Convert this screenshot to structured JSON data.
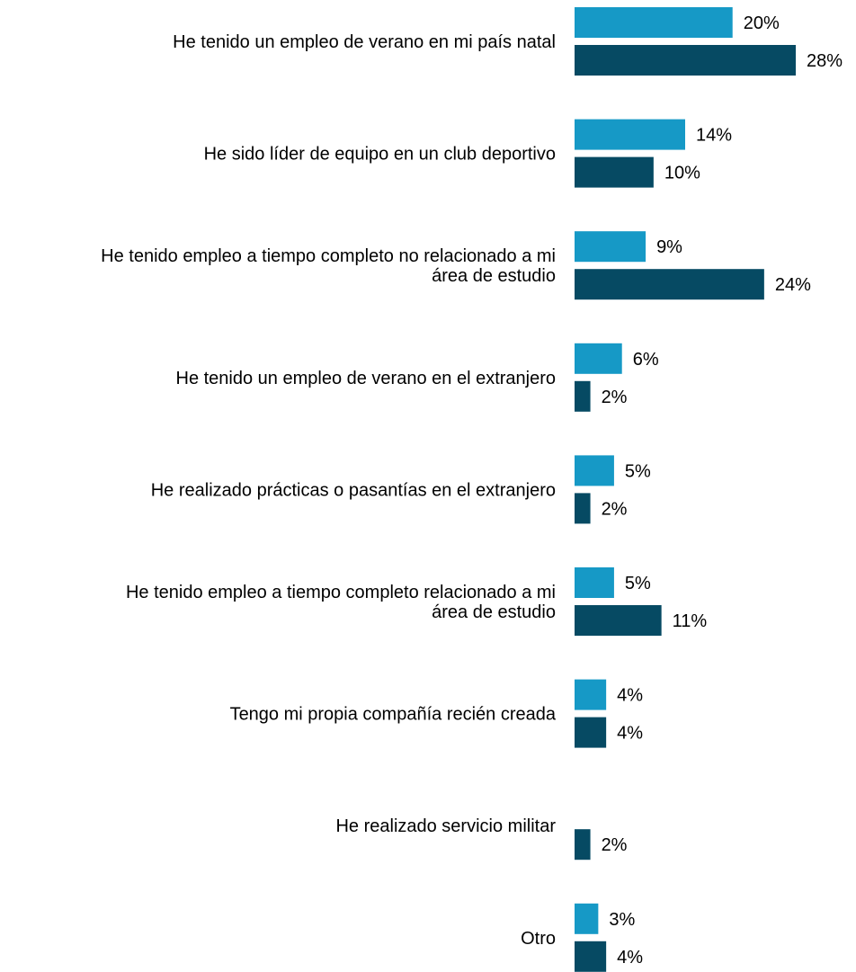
{
  "chart_data": {
    "type": "bar",
    "orientation": "horizontal",
    "categories": [
      [
        "He tenido un empleo de verano en mi país natal"
      ],
      [
        "He sido líder de equipo en un club deportivo"
      ],
      [
        "He tenido empleo a tiempo completo no relacionado a mi",
        "área de estudio"
      ],
      [
        "He tenido un empleo de verano en el extranjero"
      ],
      [
        "He realizado prácticas o pasantías en el extranjero"
      ],
      [
        "He tenido empleo a tiempo completo relacionado a mi",
        "área de estudio"
      ],
      [
        "Tengo mi propia compañía recién creada"
      ],
      [
        "He realizado servicio militar"
      ],
      [
        "Otro"
      ]
    ],
    "series": [
      {
        "color": "#1699c6",
        "values": [
          20,
          14,
          9,
          6,
          5,
          5,
          4,
          null,
          3
        ],
        "labels": [
          "20%",
          "14%",
          "9%",
          "6%",
          "5%",
          "5%",
          "4%",
          "",
          "3%"
        ]
      },
      {
        "color": "#064a63",
        "values": [
          28,
          10,
          24,
          2,
          2,
          11,
          4,
          2,
          4
        ],
        "labels": [
          "28%",
          "10%",
          "24%",
          "2%",
          "2%",
          "11%",
          "4%",
          "2%",
          "4%"
        ]
      }
    ],
    "title": "",
    "xlabel": "",
    "ylabel": "",
    "grid": false,
    "legend": "none"
  }
}
